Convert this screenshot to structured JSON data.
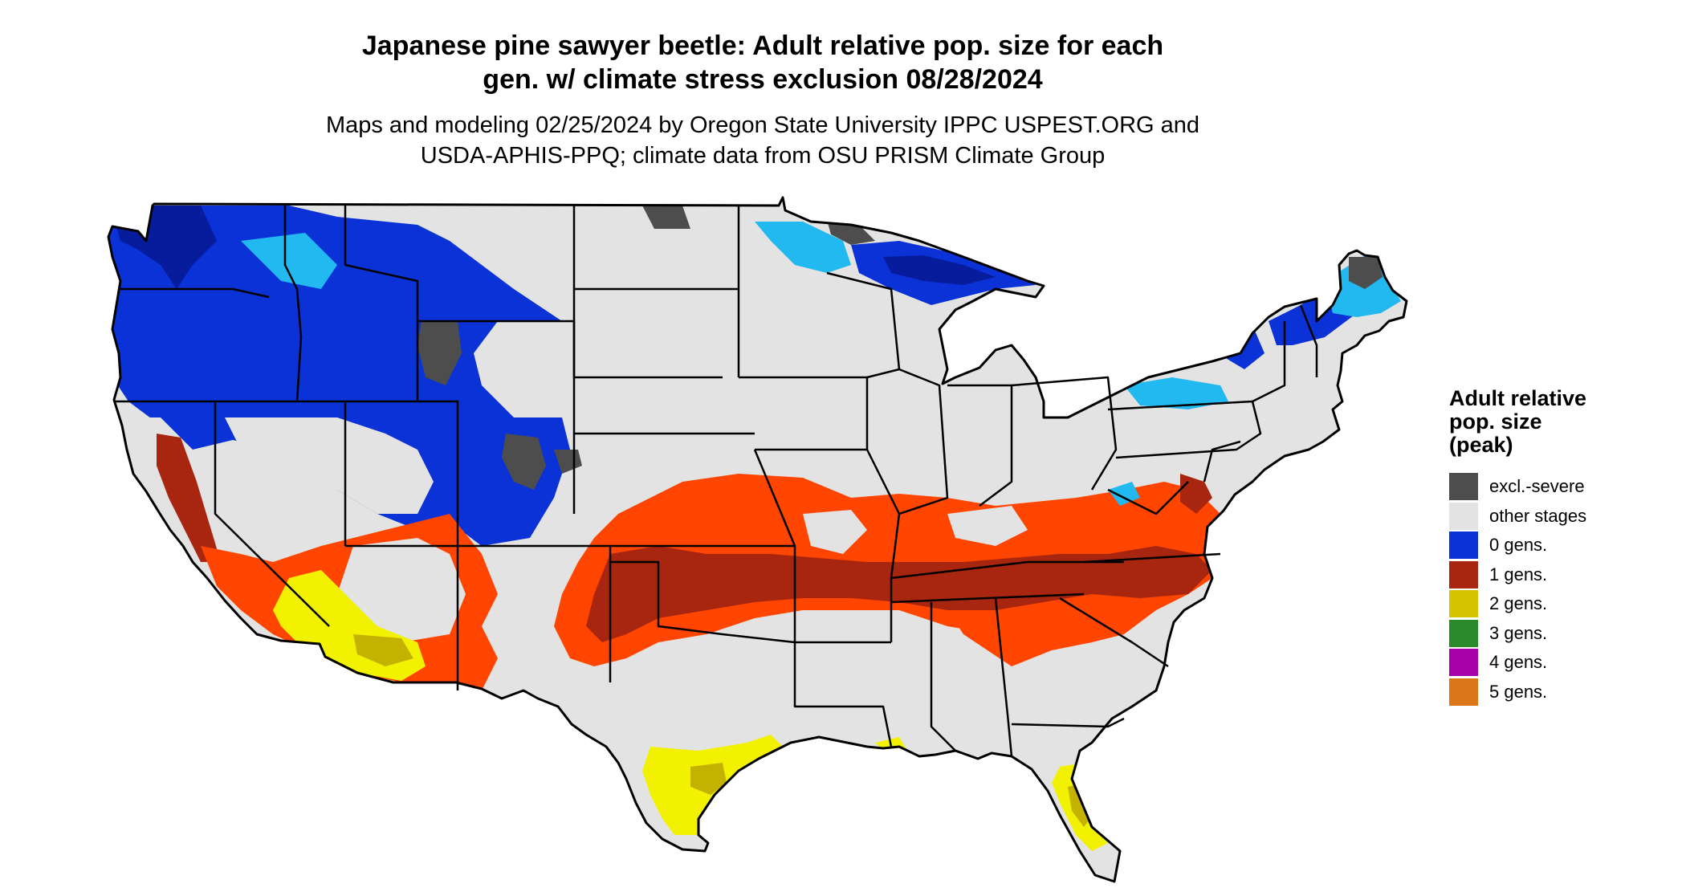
{
  "title": {
    "line1": "Japanese pine sawyer beetle: Adult relative pop. size for each",
    "line2": "gen. w/ climate stress exclusion 08/28/2024"
  },
  "subtitle": {
    "line1": "Maps and modeling 02/25/2024 by Oregon State University IPPC USPEST.ORG and",
    "line2": "USDA-APHIS-PPQ; climate data from OSU PRISM Climate Group"
  },
  "legend": {
    "title_lines": [
      "Adult relative",
      "pop. size",
      "(peak)"
    ],
    "items": [
      {
        "label": "excl.-severe",
        "color": "#4d4d4d"
      },
      {
        "label": "other stages",
        "color": "#e3e3e3"
      },
      {
        "label": "0 gens.",
        "color": "#0a32d6"
      },
      {
        "label": "1 gens.",
        "color": "#a82510"
      },
      {
        "label": "2 gens.",
        "color": "#d6c400"
      },
      {
        "label": "3 gens.",
        "color": "#2a8a2a"
      },
      {
        "label": "4 gens.",
        "color": "#a800a8"
      },
      {
        "label": "5 gens.",
        "color": "#d9771a"
      }
    ]
  },
  "map": {
    "background_color": "#e3e3e3",
    "border_color": "#000000",
    "zone_colors": {
      "light_blue": "#22b8f0",
      "light_blue_pale": "#8fd8f5",
      "blue": "#0a32d6",
      "dark_blue": "#061c9c",
      "gray": "#4d4d4d",
      "orange_red": "#ff4500",
      "dark_red": "#a82510",
      "yellow": "#f2f200",
      "olive": "#c4b200"
    }
  }
}
